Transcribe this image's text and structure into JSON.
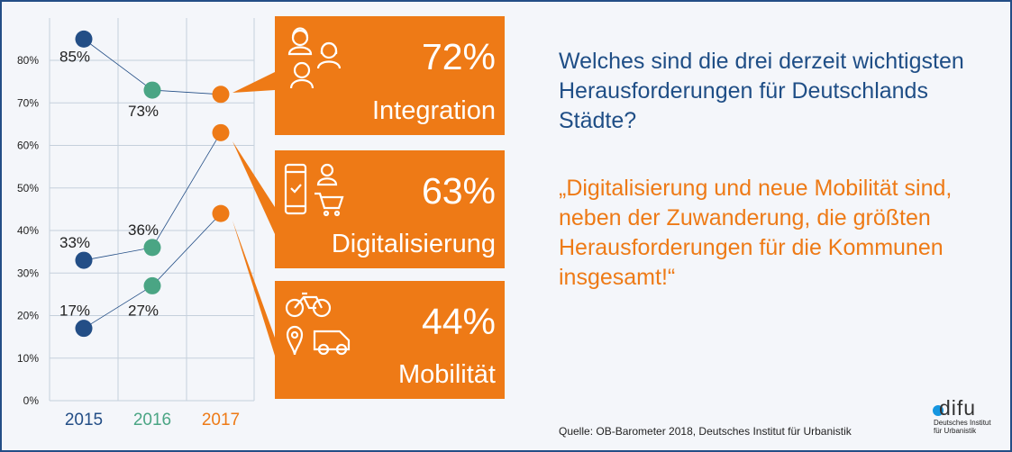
{
  "chart_data": {
    "type": "line",
    "categories": [
      "2015",
      "2016",
      "2017"
    ],
    "category_colors": [
      "#234e86",
      "#4aa584",
      "#ee7a16"
    ],
    "yticks": [
      "0%",
      "10%",
      "20%",
      "30%",
      "40%",
      "50%",
      "60%",
      "70%",
      "80%"
    ],
    "ylim": [
      0,
      90
    ],
    "series": [
      {
        "name": "Integration",
        "values": [
          85,
          73,
          72
        ],
        "labels": [
          "85%",
          "73%",
          ""
        ]
      },
      {
        "name": "Digitalisierung",
        "values": [
          33,
          36,
          63
        ],
        "labels": [
          "33%",
          "36%",
          ""
        ]
      },
      {
        "name": "Mobilität",
        "values": [
          17,
          27,
          44
        ],
        "labels": [
          "17%",
          "27%",
          ""
        ]
      }
    ]
  },
  "boxes": [
    {
      "pct": "72%",
      "label": "Integration",
      "icon": "people-icon"
    },
    {
      "pct": "63%",
      "label": "Digitalisierung",
      "icon": "phone-cart-icon"
    },
    {
      "pct": "44%",
      "label": "Mobilität",
      "icon": "bike-car-icon"
    }
  ],
  "question": "Welches sind die drei derzeit wichtigsten Herausforderungen für Deutschlands Städte?",
  "quote": "„Digitalisierung und neue Mobilität sind, neben der Zuwanderung, die größten Herausforderungen für die Kommunen insgesamt!“",
  "source": "Quelle: OB-Barometer 2018, Deutsches Institut für Urbanistik",
  "logo": {
    "word": "difu",
    "line1": "Deutsches Institut",
    "line2": "für Urbanistik"
  },
  "colors": {
    "orange": "#ee7a16",
    "blue": "#234e86",
    "green": "#4aa584"
  }
}
